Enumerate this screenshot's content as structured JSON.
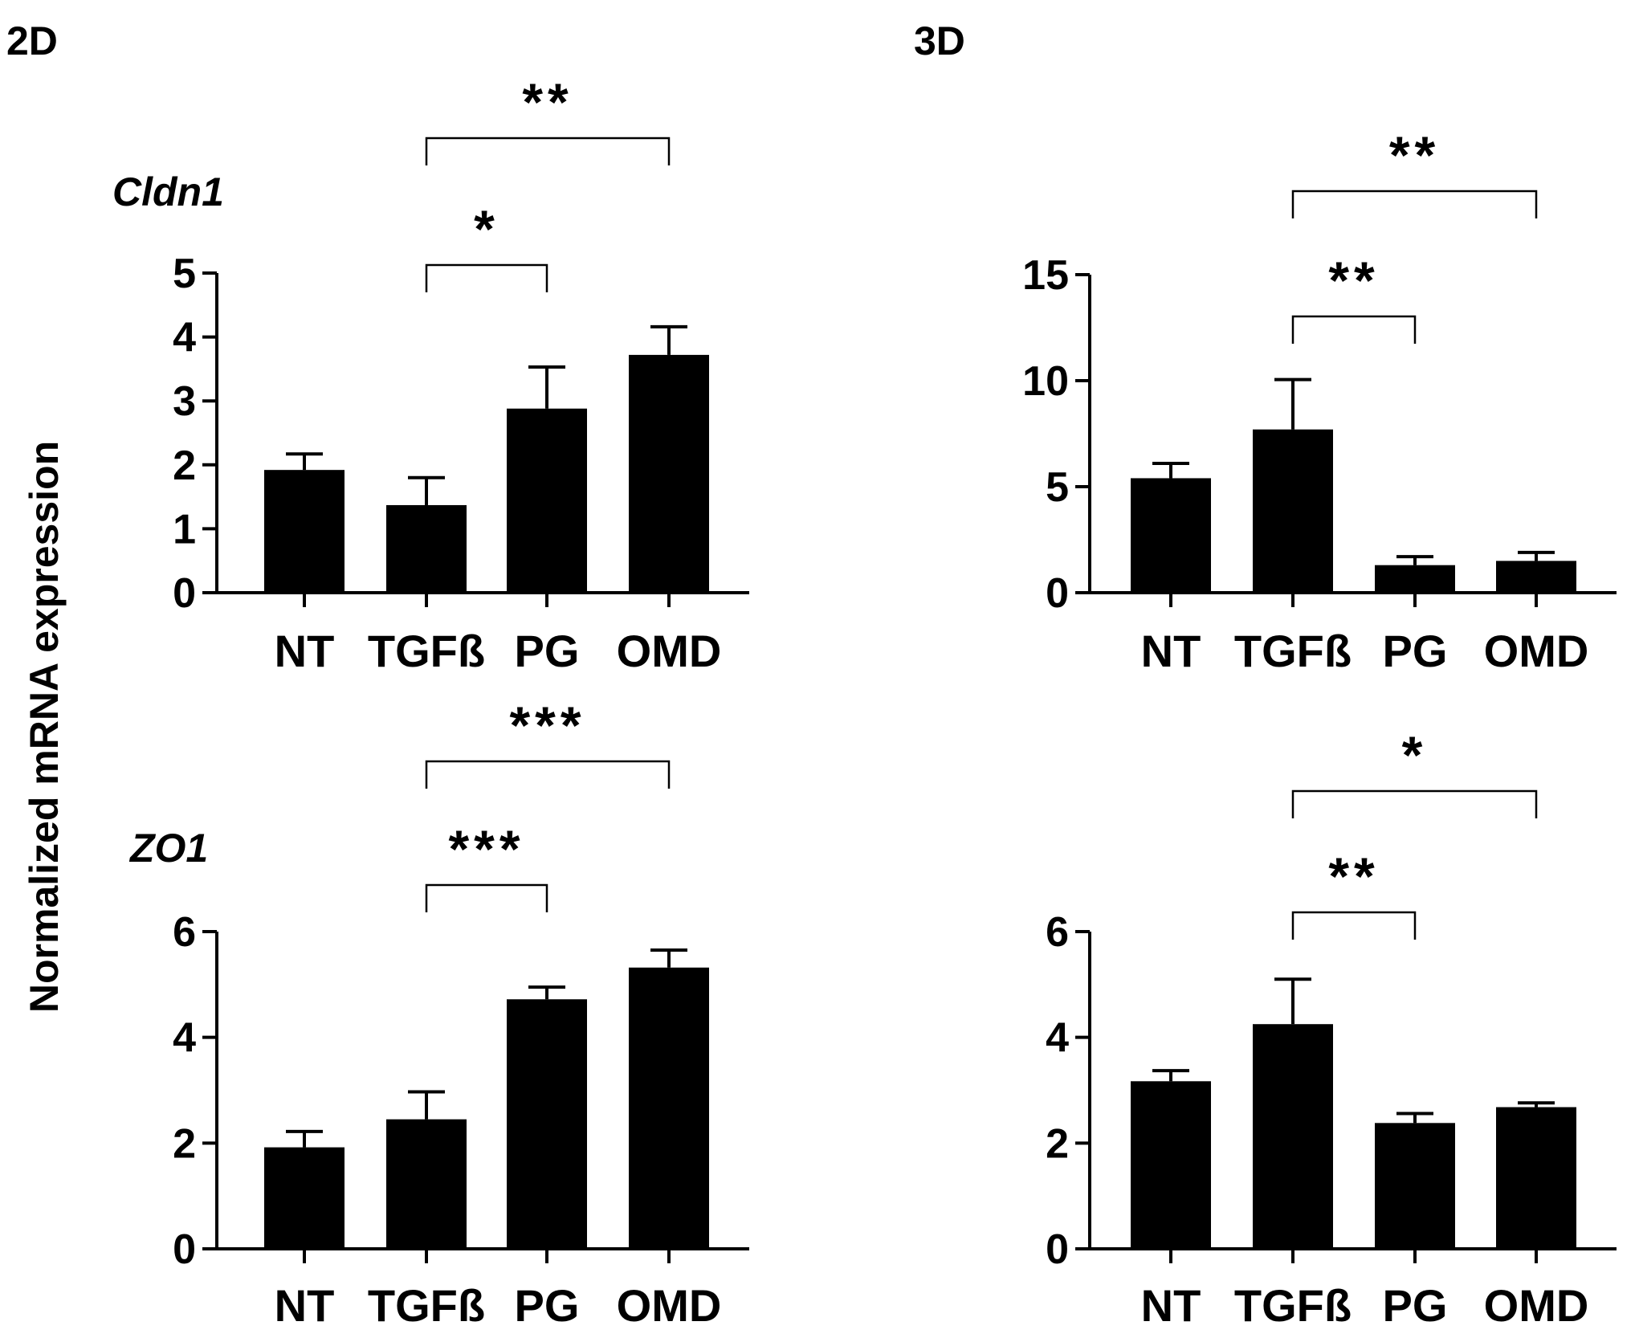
{
  "figure": {
    "ylabel": "Normalized mRNA expression",
    "panel_labels": [
      "2D",
      "3D"
    ],
    "gene_labels": [
      "Cldn1",
      "ZO1"
    ]
  },
  "colors": {
    "bar": "#000000",
    "axis": "#000000",
    "background": "#ffffff"
  },
  "chart_data": [
    {
      "id": "cldn1-2d",
      "type": "bar",
      "condition": "2D",
      "gene": "Cldn1",
      "categories": [
        "NT",
        "TGFß",
        "PG",
        "OMD"
      ],
      "values": [
        1.92,
        1.37,
        2.88,
        3.72
      ],
      "errors": [
        0.25,
        0.43,
        0.65,
        0.44
      ],
      "ylim": [
        0,
        5
      ],
      "yticks": [
        0,
        1,
        2,
        3,
        4,
        5
      ],
      "significance": [
        {
          "from": 1,
          "to": 2,
          "label": "*",
          "level": 1
        },
        {
          "from": 1,
          "to": 3,
          "label": "**",
          "level": 2
        }
      ]
    },
    {
      "id": "cldn1-3d",
      "type": "bar",
      "condition": "3D",
      "gene": "Cldn1",
      "categories": [
        "NT",
        "TGFß",
        "PG",
        "OMD"
      ],
      "values": [
        5.4,
        7.7,
        1.3,
        1.5
      ],
      "errors": [
        0.7,
        2.35,
        0.4,
        0.4
      ],
      "ylim": [
        0,
        15
      ],
      "yticks": [
        0,
        5,
        10,
        15
      ],
      "significance": [
        {
          "from": 1,
          "to": 2,
          "label": "**",
          "level": 1
        },
        {
          "from": 1,
          "to": 3,
          "label": "**",
          "level": 2
        }
      ]
    },
    {
      "id": "zo1-2d",
      "type": "bar",
      "condition": "2D",
      "gene": "ZO1",
      "categories": [
        "NT",
        "TGFß",
        "PG",
        "OMD"
      ],
      "values": [
        1.92,
        2.45,
        4.72,
        5.32
      ],
      "errors": [
        0.3,
        0.52,
        0.23,
        0.33
      ],
      "ylim": [
        0,
        6
      ],
      "yticks": [
        0,
        2,
        4,
        6
      ],
      "significance": [
        {
          "from": 1,
          "to": 2,
          "label": "***",
          "level": 1
        },
        {
          "from": 1,
          "to": 3,
          "label": "***",
          "level": 2
        }
      ]
    },
    {
      "id": "zo1-3d",
      "type": "bar",
      "condition": "3D",
      "gene": "ZO1",
      "categories": [
        "NT",
        "TGFß",
        "PG",
        "OMD"
      ],
      "values": [
        3.17,
        4.25,
        2.38,
        2.68
      ],
      "errors": [
        0.2,
        0.85,
        0.18,
        0.08
      ],
      "ylim": [
        0,
        6
      ],
      "yticks": [
        0,
        2,
        4,
        6
      ],
      "significance": [
        {
          "from": 1,
          "to": 2,
          "label": "**",
          "level": 1
        },
        {
          "from": 1,
          "to": 3,
          "label": "*",
          "level": 2
        }
      ]
    }
  ]
}
